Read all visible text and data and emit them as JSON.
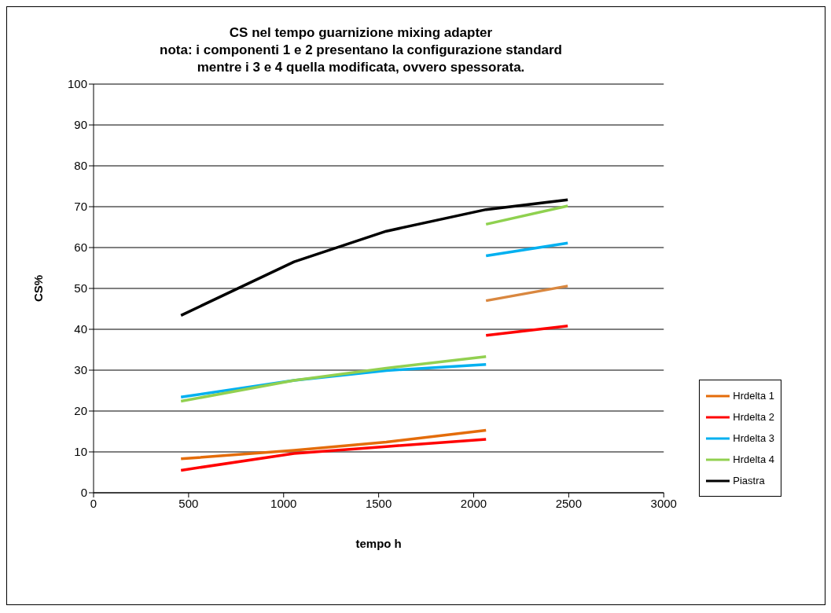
{
  "chart_data": {
    "type": "line",
    "title": "CS nel tempo guarnizione mixing adapter\nnota: i componenti 1 e 2 presentano la configurazione standard\nmentre i 3 e 4 quella modificata, ovvero spessorata.",
    "xlabel": "tempo h",
    "ylabel": "CS%",
    "xlim": [
      0,
      3000
    ],
    "xticks": [
      0,
      500,
      1000,
      1500,
      2000,
      2500,
      3000
    ],
    "ylim": [
      0,
      100
    ],
    "yticks": [
      0,
      10,
      20,
      30,
      40,
      50,
      60,
      70,
      80,
      90,
      100
    ],
    "grid": "y",
    "legend": "bottom right",
    "marker": "none",
    "line_style": "solid",
    "series": [
      {
        "name": "Hrdelta 1",
        "color": "#e46c0a",
        "x": [
          460,
          1055,
          1540,
          2065
        ],
        "values": [
          8.3,
          10.4,
          12.4,
          15.3
        ]
      },
      {
        "name": "Hrdelta 2",
        "color": "#ff0000",
        "x": [
          460,
          1055,
          1540,
          2065
        ],
        "values": [
          5.5,
          9.6,
          11.3,
          13.1
        ]
      },
      {
        "name": "Hrdelta 3",
        "color": "#00b0f0",
        "x": [
          460,
          1055,
          1540,
          2065
        ],
        "values": [
          23.4,
          27.5,
          29.9,
          31.4
        ]
      },
      {
        "name": "Hrdelta 4",
        "color": "#92d050",
        "x": [
          460,
          1055,
          1540,
          2065
        ],
        "values": [
          22.4,
          27.5,
          30.5,
          33.3
        ]
      },
      {
        "name": "Piastra",
        "color": "#000000",
        "x": [
          460,
          1055,
          1540,
          2065,
          2495
        ],
        "values": [
          43.4,
          56.5,
          64,
          69.3,
          71.7
        ]
      },
      {
        "color": "#d9873f",
        "x": [
          2065,
          2495
        ],
        "values": [
          47,
          50.6
        ]
      },
      {
        "color": "#ff0000",
        "x": [
          2065,
          2495
        ],
        "values": [
          38.5,
          40.8
        ]
      },
      {
        "color": "#00b0f0",
        "x": [
          2065,
          2495
        ],
        "values": [
          58,
          61.1
        ]
      },
      {
        "color": "#8fd14f",
        "x": [
          2065,
          2495
        ],
        "values": [
          65.7,
          70.2
        ]
      }
    ]
  }
}
